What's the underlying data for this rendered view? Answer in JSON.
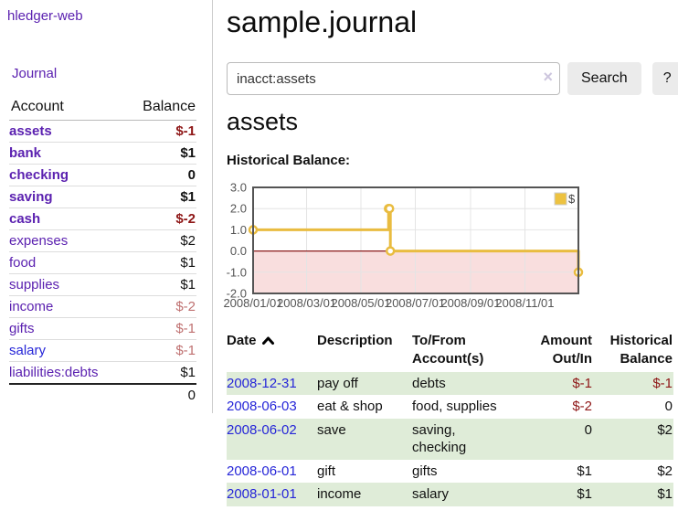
{
  "app_title": "hledger-web",
  "nav": {
    "journal": "Journal"
  },
  "accounts_panel": {
    "col_account": "Account",
    "col_balance": "Balance",
    "rows": [
      {
        "name": "assets",
        "balance": "$-1",
        "level": 1,
        "bold": true
      },
      {
        "name": "bank",
        "balance": "$1",
        "level": 2,
        "bold": true
      },
      {
        "name": "checking",
        "balance": "0",
        "level": 3,
        "bold": true
      },
      {
        "name": "saving",
        "balance": "$1",
        "level": 3,
        "bold": true
      },
      {
        "name": "cash",
        "balance": "$-2",
        "level": 2,
        "bold": true
      },
      {
        "name": "expenses",
        "balance": "$2",
        "level": 1,
        "bold": false
      },
      {
        "name": "food",
        "balance": "$1",
        "level": 2,
        "bold": false
      },
      {
        "name": "supplies",
        "balance": "$1",
        "level": 2,
        "bold": false
      },
      {
        "name": "income",
        "balance": "$-2",
        "level": 1,
        "bold": false
      },
      {
        "name": "gifts",
        "balance": "$-1",
        "level": 2,
        "bold": false
      },
      {
        "name": "salary",
        "balance": "$-1",
        "level": 2,
        "bold": false,
        "blue": true
      },
      {
        "name": "liabilities:debts",
        "balance": "$1",
        "level": 1,
        "bold": false
      }
    ],
    "total": "0"
  },
  "page": {
    "title": "sample.journal"
  },
  "search": {
    "value": "inacct:assets",
    "clear": "×",
    "button_label": "Search",
    "help_label": "?"
  },
  "account_view": {
    "heading": "assets",
    "chart_title": "Historical Balance:"
  },
  "chart_data": {
    "type": "line",
    "title": "Historical Balance",
    "legend": [
      {
        "label": "$",
        "color": "#edc240",
        "position": "ne"
      }
    ],
    "x_start_date": "2008-01-01",
    "x_range_days": [
      0,
      365
    ],
    "ylim": [
      -2,
      3
    ],
    "y_ticks": [
      3,
      2,
      1,
      0,
      -1,
      -2
    ],
    "x_ticks": [
      {
        "date": "2008-01-01",
        "label": "2008/01/01"
      },
      {
        "date": "2008-03-01",
        "label": "2008/03/01"
      },
      {
        "date": "2008-05-01",
        "label": "2008/05/01"
      },
      {
        "date": "2008-07-01",
        "label": "2008/07/01"
      },
      {
        "date": "2008-09-01",
        "label": "2008/09/01"
      },
      {
        "date": "2008-11-01",
        "label": "2008/11/01"
      }
    ],
    "series": [
      {
        "name": "$",
        "color": "#e9bc40",
        "step": true,
        "points": [
          {
            "date": "2008-01-01",
            "value": 1
          },
          {
            "date": "2008-06-01",
            "value": 2
          },
          {
            "date": "2008-06-02",
            "value": 2
          },
          {
            "date": "2008-06-03",
            "value": 0
          },
          {
            "date": "2008-12-31",
            "value": -1
          }
        ]
      }
    ],
    "grid": true,
    "below_zero_fill": "#f9dede",
    "zero_line_color": "#8b1a1a"
  },
  "register": {
    "col_date": "Date",
    "col_description": "Description",
    "col_accounts": "To/From\nAccount(s)",
    "col_amount": "Amount\nOut/In",
    "col_balance": "Historical\nBalance",
    "sort_icon": "chevron-up",
    "rows": [
      {
        "date": "2008-12-31",
        "description": "pay off",
        "accounts": "debts",
        "amount": "$-1",
        "balance": "$-1"
      },
      {
        "date": "2008-06-03",
        "description": "eat & shop",
        "accounts": "food, supplies",
        "amount": "$-2",
        "balance": "0"
      },
      {
        "date": "2008-06-02",
        "description": "save",
        "accounts": "saving,\nchecking",
        "amount": "0",
        "balance": "$2"
      },
      {
        "date": "2008-06-01",
        "description": "gift",
        "accounts": "gifts",
        "amount": "$1",
        "balance": "$2"
      },
      {
        "date": "2008-01-01",
        "description": "income",
        "accounts": "salary",
        "amount": "$1",
        "balance": "$1"
      }
    ]
  },
  "colors": {
    "link_purple": "#5b21b0",
    "link_blue": "#2626d8",
    "negative_strong": "#8e1616",
    "negative_soft": "#bf7070",
    "row_stripe_green": "#dfecd8",
    "chart_line": "#e9bc40",
    "chart_border": "#545454"
  }
}
